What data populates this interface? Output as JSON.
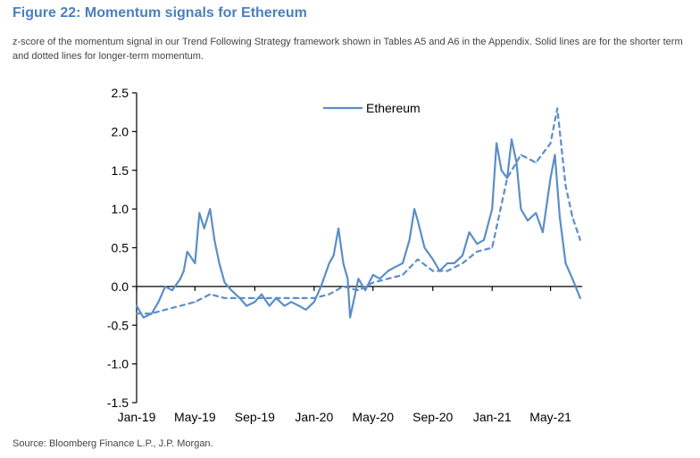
{
  "figure": {
    "title": "Figure 22: Momentum signals for Ethereum",
    "caption": "z-score of the momentum signal in our Trend Following Strategy framework shown in Tables A5 and A6 in the Appendix. Solid lines are for the shorter term and dotted lines for longer-term momentum.",
    "source": "Source: Bloomberg Finance L.P., J.P. Morgan."
  },
  "colors": {
    "series": "#5b8ec7",
    "axis": "#000000"
  },
  "chart_data": {
    "type": "line",
    "title": "",
    "xlabel": "",
    "ylabel": "",
    "ylim": [
      -1.5,
      2.5
    ],
    "xlim": [
      "2019-01-01",
      "2021-07-05"
    ],
    "grid": false,
    "legend": {
      "position": "top-center",
      "entries": [
        "Ethereum"
      ]
    },
    "y_ticks": [
      2.5,
      2.0,
      1.5,
      1.0,
      0.5,
      0.0,
      -0.5,
      -1.0,
      -1.5
    ],
    "y_tick_labels": [
      "2.5",
      "2.0",
      "1.5",
      "1.0",
      "0.5",
      "0.0",
      "-0.5",
      "-1.0",
      "-1.5"
    ],
    "x_ticks": [
      "2019-01-01",
      "2019-05-01",
      "2019-09-01",
      "2020-01-01",
      "2020-05-01",
      "2020-09-01",
      "2021-01-01",
      "2021-05-01"
    ],
    "x_tick_labels": [
      "Jan-19",
      "May-19",
      "Sep-19",
      "Jan-20",
      "May-20",
      "Sep-20",
      "Jan-21",
      "May-21"
    ],
    "series": [
      {
        "name": "Ethereum",
        "style": "solid",
        "x": [
          "2019-01-01",
          "2019-01-15",
          "2019-02-01",
          "2019-02-15",
          "2019-03-01",
          "2019-03-15",
          "2019-04-01",
          "2019-04-08",
          "2019-04-15",
          "2019-05-01",
          "2019-05-10",
          "2019-05-20",
          "2019-06-01",
          "2019-06-10",
          "2019-06-20",
          "2019-07-01",
          "2019-07-15",
          "2019-08-01",
          "2019-08-15",
          "2019-09-01",
          "2019-09-15",
          "2019-10-01",
          "2019-10-15",
          "2019-11-01",
          "2019-11-15",
          "2019-12-01",
          "2019-12-15",
          "2020-01-01",
          "2020-01-15",
          "2020-02-01",
          "2020-02-10",
          "2020-02-20",
          "2020-03-01",
          "2020-03-10",
          "2020-03-15",
          "2020-04-01",
          "2020-04-15",
          "2020-05-01",
          "2020-05-15",
          "2020-06-01",
          "2020-06-15",
          "2020-07-01",
          "2020-07-15",
          "2020-07-25",
          "2020-08-01",
          "2020-08-15",
          "2020-09-01",
          "2020-09-15",
          "2020-10-01",
          "2020-10-15",
          "2020-11-01",
          "2020-11-15",
          "2020-12-01",
          "2020-12-15",
          "2021-01-01",
          "2021-01-10",
          "2021-01-20",
          "2021-02-01",
          "2021-02-10",
          "2021-02-20",
          "2021-03-01",
          "2021-03-15",
          "2021-04-01",
          "2021-04-15",
          "2021-05-01",
          "2021-05-10",
          "2021-05-20",
          "2021-06-01",
          "2021-06-15",
          "2021-07-01"
        ],
        "y": [
          -0.25,
          -0.4,
          -0.35,
          -0.2,
          0.0,
          -0.05,
          0.1,
          0.2,
          0.45,
          0.3,
          0.95,
          0.75,
          1.0,
          0.6,
          0.3,
          0.05,
          -0.05,
          -0.15,
          -0.25,
          -0.2,
          -0.1,
          -0.25,
          -0.15,
          -0.25,
          -0.2,
          -0.25,
          -0.3,
          -0.2,
          0.0,
          0.3,
          0.4,
          0.75,
          0.3,
          0.1,
          -0.4,
          0.1,
          -0.05,
          0.15,
          0.1,
          0.2,
          0.25,
          0.3,
          0.6,
          1.0,
          0.85,
          0.5,
          0.35,
          0.2,
          0.3,
          0.3,
          0.4,
          0.7,
          0.55,
          0.6,
          1.0,
          1.85,
          1.5,
          1.4,
          1.9,
          1.6,
          1.0,
          0.85,
          0.95,
          0.7,
          1.4,
          1.7,
          0.9,
          0.3,
          0.1,
          -0.15
        ]
      },
      {
        "name": "",
        "style": "dotted",
        "x": [
          "2019-01-01",
          "2019-02-01",
          "2019-03-01",
          "2019-04-01",
          "2019-05-01",
          "2019-06-01",
          "2019-07-01",
          "2019-08-01",
          "2019-09-01",
          "2019-10-01",
          "2019-11-01",
          "2019-12-01",
          "2020-01-01",
          "2020-02-01",
          "2020-03-01",
          "2020-04-01",
          "2020-05-01",
          "2020-06-01",
          "2020-07-01",
          "2020-08-01",
          "2020-09-01",
          "2020-10-01",
          "2020-11-01",
          "2020-12-01",
          "2021-01-01",
          "2021-02-01",
          "2021-03-01",
          "2021-04-01",
          "2021-05-01",
          "2021-05-15",
          "2021-06-01",
          "2021-06-15",
          "2021-07-01"
        ],
        "y": [
          -0.35,
          -0.35,
          -0.3,
          -0.25,
          -0.2,
          -0.1,
          -0.15,
          -0.15,
          -0.15,
          -0.15,
          -0.15,
          -0.15,
          -0.15,
          -0.1,
          0.0,
          -0.05,
          0.05,
          0.1,
          0.15,
          0.35,
          0.2,
          0.2,
          0.3,
          0.45,
          0.5,
          1.4,
          1.7,
          1.6,
          1.85,
          2.3,
          1.3,
          0.9,
          0.6
        ]
      }
    ]
  }
}
